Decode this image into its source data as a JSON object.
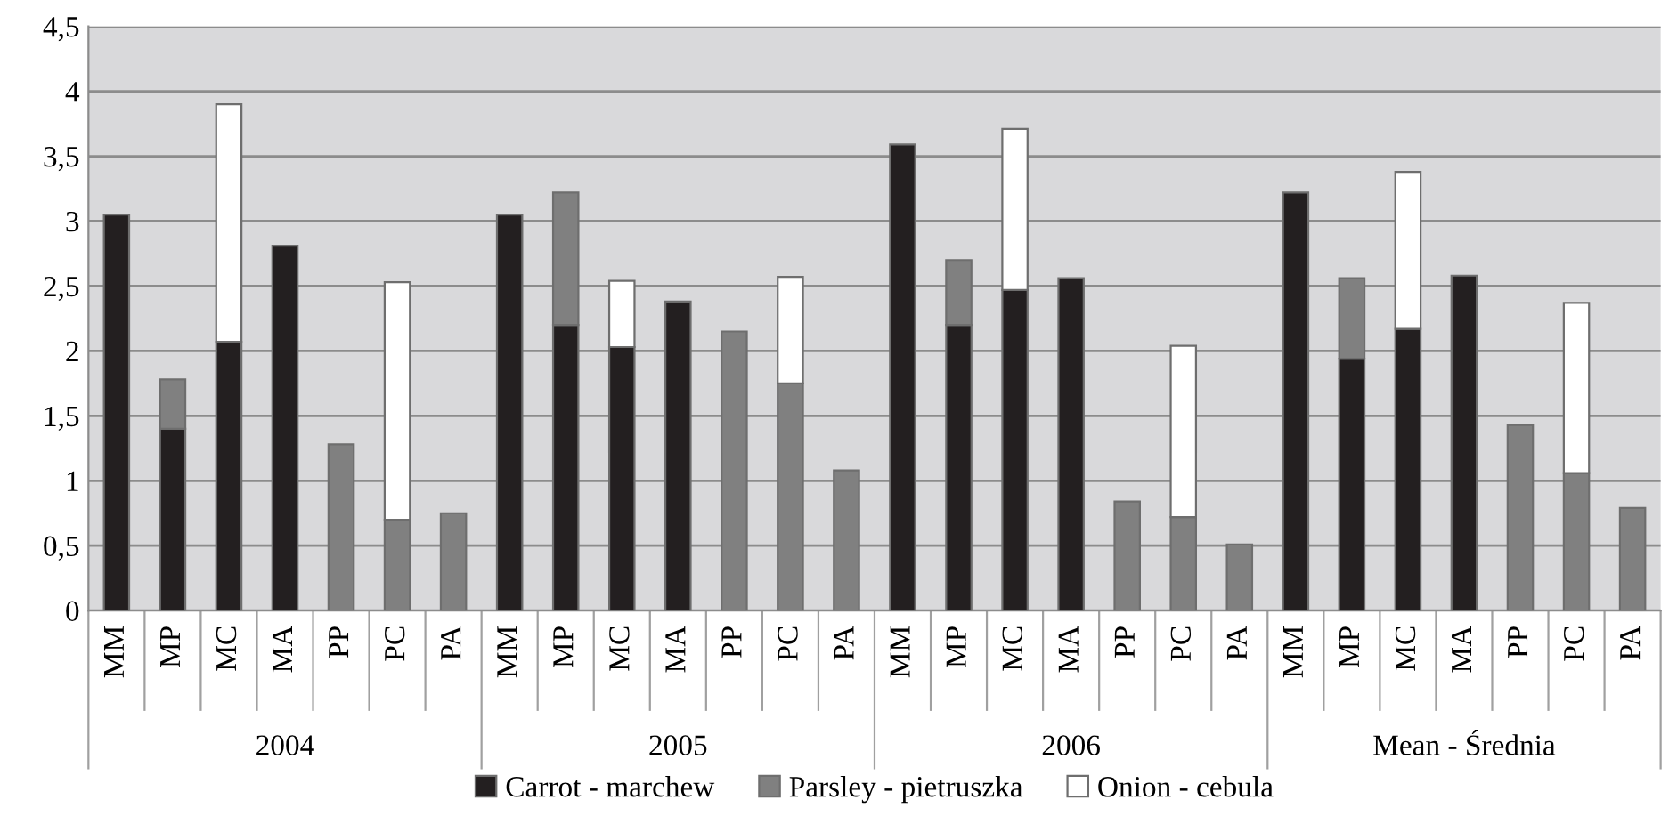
{
  "chart_data": {
    "type": "bar",
    "stacked": true,
    "categories": [
      "MM",
      "MP",
      "MC",
      "MA",
      "PP",
      "PC",
      "PA",
      "MM",
      "MP",
      "MC",
      "MA",
      "PP",
      "PC",
      "PA",
      "MM",
      "MP",
      "MC",
      "MA",
      "PP",
      "PC",
      "PA",
      "MM",
      "MP",
      "MC",
      "MA",
      "PP",
      "PC",
      "PA"
    ],
    "series": [
      {
        "name": "Carrot - marchew",
        "color": "#231f20",
        "values": [
          3.05,
          1.4,
          2.07,
          2.81,
          null,
          null,
          null,
          3.05,
          2.2,
          2.03,
          2.38,
          null,
          null,
          null,
          3.59,
          2.2,
          2.47,
          2.56,
          null,
          null,
          null,
          3.22,
          1.94,
          2.17,
          2.58,
          null,
          null,
          null
        ]
      },
      {
        "name": "Parsley - pietruszka",
        "color": "#808080",
        "values": [
          null,
          0.38,
          null,
          null,
          1.28,
          0.7,
          0.75,
          null,
          1.02,
          null,
          null,
          2.15,
          1.75,
          1.08,
          null,
          0.5,
          null,
          null,
          0.84,
          0.72,
          0.51,
          null,
          0.62,
          null,
          null,
          1.43,
          1.06,
          0.79
        ]
      },
      {
        "name": "Onion - cebula",
        "color": "#ffffff",
        "values": [
          null,
          null,
          1.83,
          null,
          null,
          1.83,
          null,
          null,
          null,
          0.51,
          null,
          null,
          0.82,
          null,
          null,
          null,
          1.24,
          null,
          null,
          1.32,
          null,
          null,
          null,
          1.21,
          null,
          null,
          1.31,
          null
        ]
      }
    ],
    "annotations": [
      "2004",
      "2005",
      "2006",
      "Mean - Średnia"
    ],
    "ylim": [
      0,
      4.5
    ],
    "yticks": [
      0,
      {
        "value": 0.5,
        "label": "0,5"
      },
      1,
      {
        "value": 1.5,
        "label": "1,5"
      },
      2,
      {
        "value": 2.5,
        "label": "2,5"
      },
      3,
      {
        "value": 3.5,
        "label": "3,5"
      },
      4,
      {
        "value": 4.5,
        "label": "4,5"
      }
    ],
    "grid": "y",
    "legend": "bottom"
  }
}
